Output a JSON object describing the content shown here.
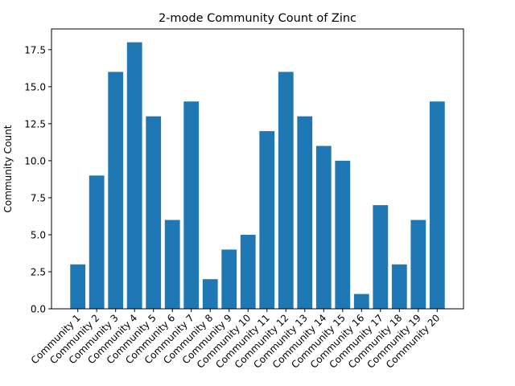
{
  "chart_data": {
    "type": "bar",
    "title": "2-mode Community Count of Zinc",
    "xlabel": "",
    "ylabel": "Community Count",
    "categories": [
      "Community 1",
      "Community 2",
      "Community 3",
      "Community 4",
      "Community 5",
      "Community 6",
      "Community 7",
      "Community 8",
      "Community 9",
      "Community 10",
      "Community 11",
      "Community 12",
      "Community 13",
      "Community 14",
      "Community 15",
      "Community 16",
      "Community 17",
      "Community 18",
      "Community 19",
      "Community 20"
    ],
    "values": [
      3,
      9,
      16,
      18,
      13,
      6,
      14,
      2,
      4,
      5,
      12,
      16,
      13,
      11,
      10,
      1,
      7,
      3,
      6,
      14
    ],
    "ylim": [
      0,
      18.9
    ],
    "yticks": [
      0.0,
      2.5,
      5.0,
      7.5,
      10.0,
      12.5,
      15.0,
      17.5
    ],
    "ytick_labels": [
      "0.0",
      "2.5",
      "5.0",
      "7.5",
      "10.0",
      "12.5",
      "15.0",
      "17.5"
    ],
    "bar_color": "#1f77b4",
    "grid": false,
    "legend": "none"
  }
}
